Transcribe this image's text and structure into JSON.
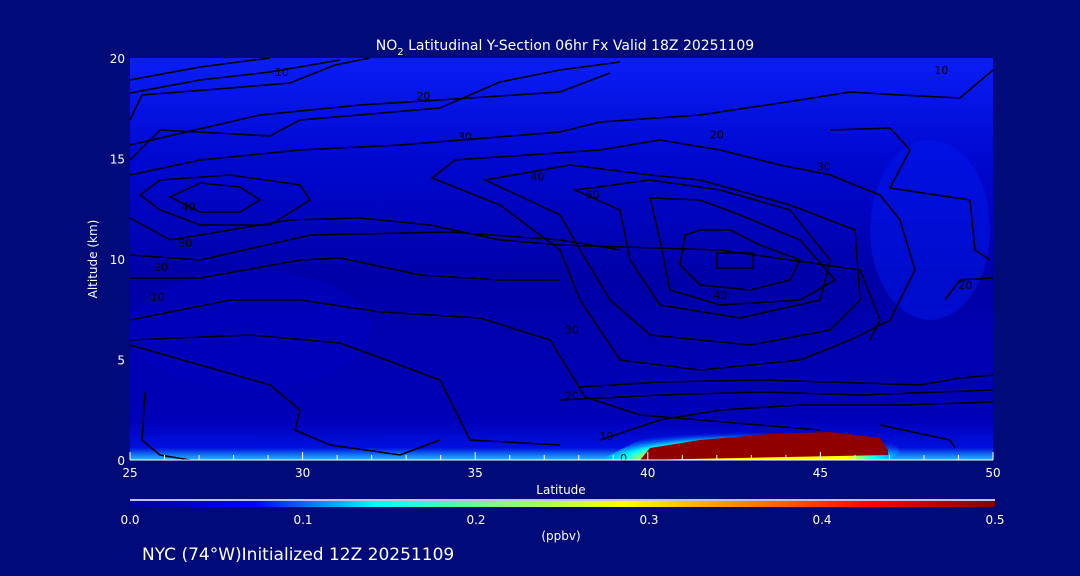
{
  "chart_data": {
    "type": "heatmap",
    "title": "NO",
    "title_sub": "2",
    "title_rest": " Latitudinal Y-Section 06hr  Fx Valid 18Z 20251109",
    "xlabel": "Latitude",
    "ylabel": "Altitude (km)",
    "xlim": [
      25,
      50
    ],
    "ylim": [
      0,
      20
    ],
    "xticks": [
      "25",
      "30",
      "35",
      "40",
      "45",
      "50"
    ],
    "yticks": [
      "0",
      "5",
      "10",
      "15",
      "20"
    ],
    "colorbar": {
      "label": "(ppbv)",
      "range": [
        0.0,
        0.5
      ],
      "ticks": [
        "0.0",
        "0.1",
        "0.2",
        "0.3",
        "0.4",
        "0.5"
      ],
      "colors": [
        "#0000a0",
        "#0000ff",
        "#00ffff",
        "#80ff80",
        "#ffff00",
        "#ff8000",
        "#ff0000",
        "#800000"
      ]
    },
    "field_description_peak": {
      "lat_range": [
        39.5,
        47
      ],
      "alt_range": [
        0,
        0.9
      ],
      "value_at_least": 0.5
    },
    "contour_labels": [
      {
        "text": "10",
        "lat": 29.4,
        "alt": 19.3
      },
      {
        "text": "20",
        "lat": 33.5,
        "alt": 18.1
      },
      {
        "text": "30",
        "lat": 34.7,
        "alt": 16.1
      },
      {
        "text": "40",
        "lat": 26.7,
        "alt": 12.6
      },
      {
        "text": "30",
        "lat": 26.6,
        "alt": 10.8
      },
      {
        "text": "20",
        "lat": 25.9,
        "alt": 9.6
      },
      {
        "text": "10",
        "lat": 25.8,
        "alt": 8.1
      },
      {
        "text": "10",
        "lat": 48.5,
        "alt": 19.4
      },
      {
        "text": "20",
        "lat": 42.0,
        "alt": 16.2
      },
      {
        "text": "30",
        "lat": 45.1,
        "alt": 14.6
      },
      {
        "text": "40",
        "lat": 36.8,
        "alt": 14.1
      },
      {
        "text": "50",
        "lat": 38.4,
        "alt": 13.2
      },
      {
        "text": "40",
        "lat": 42.1,
        "alt": 8.2
      },
      {
        "text": "30",
        "lat": 37.8,
        "alt": 6.5
      },
      {
        "text": "20",
        "lat": 49.2,
        "alt": 8.7
      },
      {
        "text": "20",
        "lat": 37.8,
        "alt": 3.2
      },
      {
        "text": "10",
        "lat": 38.8,
        "alt": 1.2
      },
      {
        "text": "0",
        "lat": 39.3,
        "alt": 0.1
      }
    ]
  },
  "footer": {
    "text": "NYC (74°W)Initialized 12Z 20251109"
  }
}
